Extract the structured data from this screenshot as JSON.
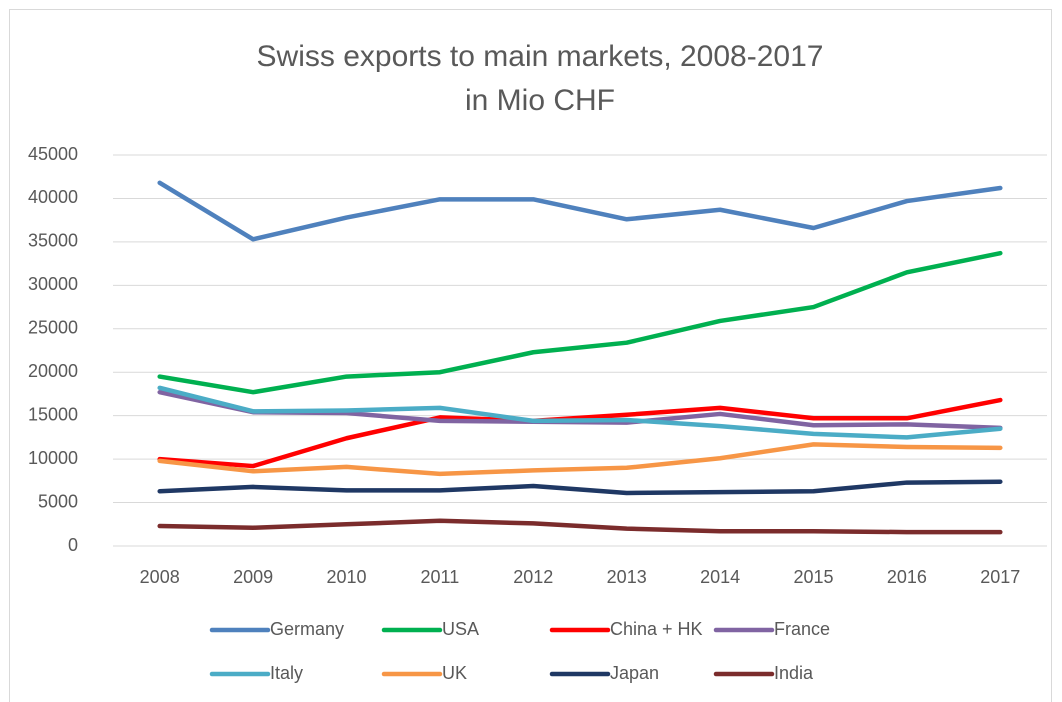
{
  "chart_data": {
    "type": "line",
    "title": "Swiss exports to main markets, 2008-2017",
    "subtitle": "in Mio CHF",
    "categories": [
      "2008",
      "2009",
      "2010",
      "2011",
      "2012",
      "2013",
      "2014",
      "2015",
      "2016",
      "2017"
    ],
    "series": [
      {
        "name": "Germany",
        "color": "#4f81bd",
        "values": [
          41800,
          35300,
          37800,
          39900,
          39900,
          37600,
          38700,
          36600,
          39700,
          41200
        ]
      },
      {
        "name": "USA",
        "color": "#00b050",
        "values": [
          19500,
          17700,
          19500,
          20000,
          22300,
          23400,
          25900,
          27500,
          31500,
          33700
        ]
      },
      {
        "name": "China + HK",
        "color": "#ff0000",
        "values": [
          10000,
          9200,
          12400,
          14800,
          14400,
          15100,
          15900,
          14700,
          14700,
          16800
        ]
      },
      {
        "name": "France",
        "color": "#8064a2",
        "values": [
          17700,
          15400,
          15300,
          14400,
          14300,
          14200,
          15200,
          13900,
          14000,
          13600
        ]
      },
      {
        "name": "Italy",
        "color": "#4bacc6",
        "values": [
          18200,
          15500,
          15600,
          15900,
          14400,
          14500,
          13800,
          12900,
          12500,
          13500
        ]
      },
      {
        "name": "UK",
        "color": "#f79646",
        "values": [
          9800,
          8600,
          9100,
          8300,
          8700,
          9000,
          10100,
          11700,
          11400,
          11300
        ]
      },
      {
        "name": "Japan",
        "color": "#1f3864",
        "values": [
          6300,
          6800,
          6400,
          6400,
          6900,
          6100,
          6200,
          6300,
          7300,
          7400
        ]
      },
      {
        "name": "India",
        "color": "#7b2c2c",
        "values": [
          2300,
          2100,
          2500,
          2900,
          2600,
          2000,
          1700,
          1700,
          1600,
          1600
        ]
      }
    ],
    "ylim": [
      0,
      45000
    ],
    "yticks": [
      0,
      5000,
      10000,
      15000,
      20000,
      25000,
      30000,
      35000,
      40000,
      45000
    ],
    "grid": true,
    "legend": "bottom"
  }
}
